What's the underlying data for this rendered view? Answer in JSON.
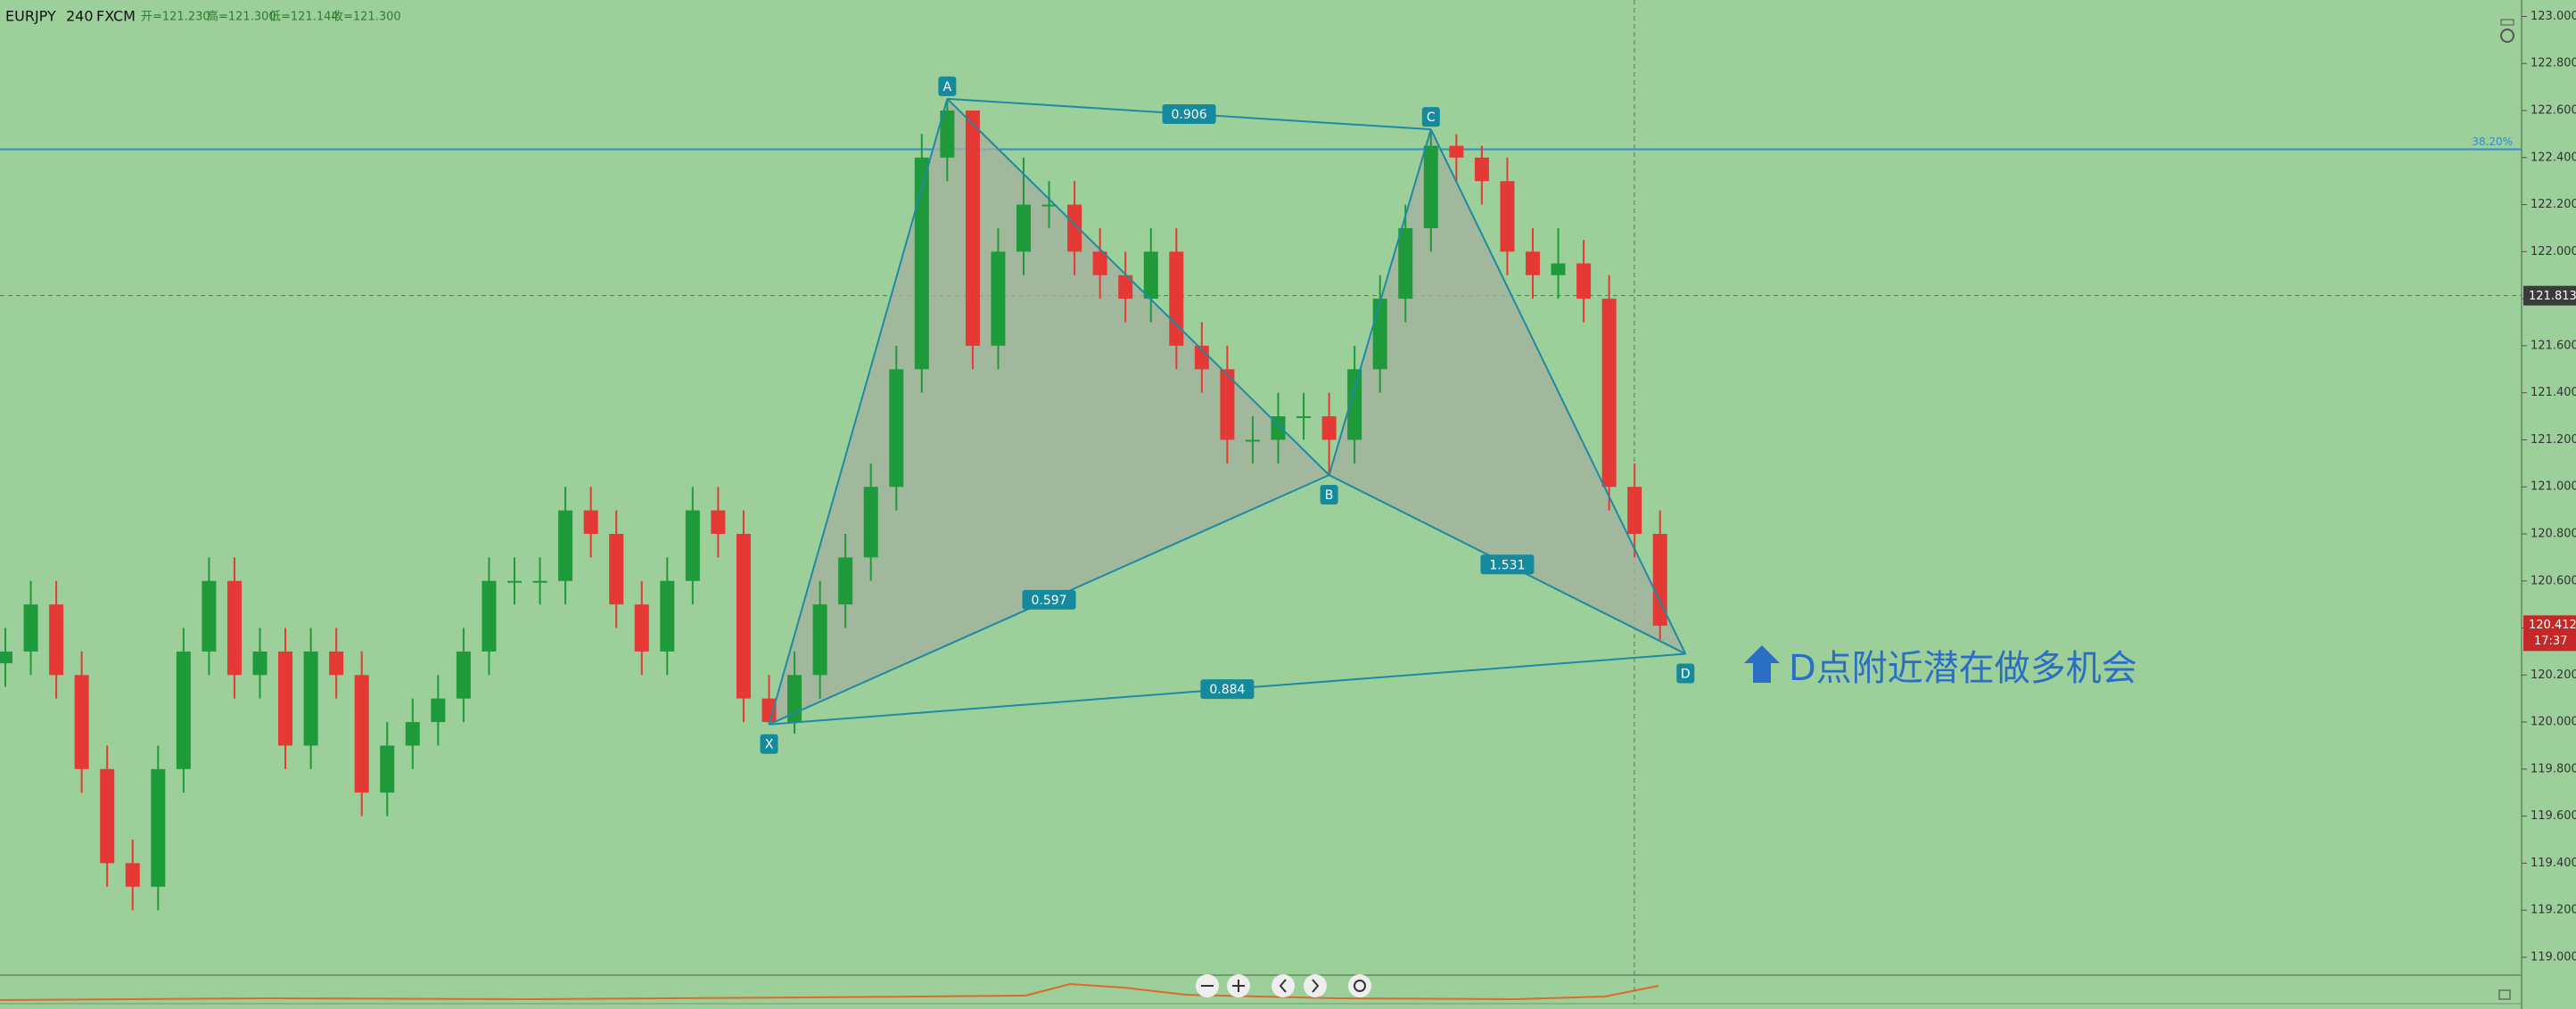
{
  "chart_data": {
    "type": "candlestick",
    "header": {
      "symbol": "EURJPY",
      "interval": "240",
      "source": "FXCM",
      "ohlc": [
        "开=121.230",
        "高=121.300",
        "低=121.144",
        "收=121.300"
      ]
    },
    "open": [
      120.25,
      120.3,
      120.5,
      120.2,
      119.8,
      119.4,
      119.3,
      119.8,
      120.3,
      120.6,
      120.2,
      120.3,
      119.9,
      120.3,
      120.2,
      119.7,
      119.9,
      120.0,
      120.1,
      120.3,
      120.6,
      120.6,
      120.6,
      120.9,
      120.8,
      120.5,
      120.3,
      120.6,
      120.9,
      120.8,
      120.1,
      120.0,
      120.2,
      120.5,
      120.7,
      121.0,
      121.5,
      122.4,
      122.6,
      121.6,
      122.0,
      122.2,
      122.2,
      122.0,
      121.9,
      121.8,
      122.0,
      121.6,
      121.5,
      121.2,
      121.2,
      121.3,
      121.3,
      121.2,
      121.5,
      121.8,
      122.1,
      122.45,
      122.4,
      122.3,
      122.0,
      121.9,
      121.95,
      121.8,
      121.0,
      120.8
    ],
    "high": [
      120.4,
      120.6,
      120.6,
      120.3,
      119.9,
      119.5,
      119.9,
      120.4,
      120.7,
      120.7,
      120.4,
      120.4,
      120.4,
      120.4,
      120.3,
      120.0,
      120.1,
      120.2,
      120.4,
      120.7,
      120.7,
      120.7,
      121.0,
      121.0,
      120.9,
      120.6,
      120.7,
      121.0,
      121.0,
      120.9,
      120.2,
      120.3,
      120.6,
      120.8,
      121.1,
      121.6,
      122.5,
      122.65,
      122.6,
      122.1,
      122.4,
      122.3,
      122.3,
      122.1,
      122.0,
      122.1,
      122.1,
      121.7,
      121.6,
      121.3,
      121.4,
      121.4,
      121.4,
      121.6,
      121.9,
      122.2,
      122.52,
      122.5,
      122.45,
      122.4,
      122.1,
      122.1,
      122.05,
      121.9,
      121.1,
      120.9
    ],
    "low": [
      120.15,
      120.2,
      120.1,
      119.7,
      119.3,
      119.2,
      119.2,
      119.7,
      120.2,
      120.1,
      120.1,
      119.8,
      119.8,
      120.1,
      119.6,
      119.6,
      119.8,
      119.9,
      120.0,
      120.2,
      120.5,
      120.5,
      120.5,
      120.7,
      120.4,
      120.2,
      120.2,
      120.5,
      120.7,
      120.0,
      119.99,
      119.95,
      120.1,
      120.4,
      120.6,
      120.9,
      121.4,
      122.3,
      121.5,
      121.5,
      121.9,
      122.1,
      121.9,
      121.8,
      121.7,
      121.7,
      121.5,
      121.4,
      121.1,
      121.1,
      121.1,
      121.2,
      121.05,
      121.1,
      121.4,
      121.7,
      122.0,
      122.3,
      122.2,
      121.9,
      121.8,
      121.8,
      121.7,
      120.9,
      120.7,
      120.35
    ],
    "close": [
      120.3,
      120.5,
      120.2,
      119.8,
      119.4,
      119.3,
      119.8,
      120.3,
      120.6,
      120.2,
      120.3,
      119.9,
      120.3,
      120.2,
      119.7,
      119.9,
      120.0,
      120.1,
      120.3,
      120.6,
      120.6,
      120.6,
      120.9,
      120.8,
      120.5,
      120.3,
      120.6,
      120.9,
      120.8,
      120.1,
      120.0,
      120.2,
      120.5,
      120.7,
      121.0,
      121.5,
      122.4,
      122.6,
      121.6,
      122.0,
      122.2,
      122.2,
      122.0,
      121.9,
      121.8,
      122.0,
      121.6,
      121.5,
      121.2,
      121.2,
      121.3,
      121.3,
      121.2,
      121.5,
      121.8,
      122.1,
      122.45,
      122.4,
      122.3,
      122.0,
      121.9,
      121.95,
      121.8,
      121.0,
      120.8,
      120.41
    ],
    "up_color": "#1e9a3a",
    "down_color": "#e53935",
    "ylim": [
      118.924,
      123.07
    ],
    "yticks": [
      {
        "value": 119,
        "label": "119.000"
      },
      {
        "value": 119.2,
        "label": "119.200"
      },
      {
        "value": 119.4,
        "label": "119.400"
      },
      {
        "value": 119.6,
        "label": "119.600"
      },
      {
        "value": 119.8,
        "label": "119.800"
      },
      {
        "value": 120,
        "label": "120.000"
      },
      {
        "value": 120.2,
        "label": "120.200"
      },
      {
        "value": 120.4,
        "label": "120.400"
      },
      {
        "value": 120.6,
        "label": "120.600"
      },
      {
        "value": 120.8,
        "label": "120.800"
      },
      {
        "value": 121,
        "label": "121.000"
      },
      {
        "value": 121.2,
        "label": "121.200"
      },
      {
        "value": 121.4,
        "label": "121.400"
      },
      {
        "value": 121.6,
        "label": "121.600"
      },
      {
        "value": 121.8,
        "label": "121.800"
      },
      {
        "value": 122,
        "label": "122.000"
      },
      {
        "value": 122.2,
        "label": "122.200"
      },
      {
        "value": 122.4,
        "label": "122.400"
      },
      {
        "value": 122.6,
        "label": "122.600"
      },
      {
        "value": 122.8,
        "label": "122.800"
      },
      {
        "value": 123,
        "label": "123.000"
      }
    ],
    "pattern": {
      "color": "#1f8aa3",
      "points": [
        {
          "label": "X",
          "x": 30,
          "y": 119.99
        },
        {
          "label": "A",
          "x": 37,
          "y": 122.65
        },
        {
          "label": "B",
          "x": 52,
          "y": 121.05
        },
        {
          "label": "C",
          "x": 56,
          "y": 122.52
        },
        {
          "label": "D",
          "x": 66,
          "y": 120.29
        }
      ],
      "ratios": {
        "AC": 0.906,
        "XB": 0.597,
        "BD": 1.531,
        "XD": 0.884
      }
    },
    "fib_line": {
      "price": 122.435,
      "label": "38.20%"
    },
    "crosshair": 121.813,
    "last_price": {
      "value": 120.412,
      "countdown": "17:37"
    },
    "annotation": "D点附近潜在做多机会"
  }
}
